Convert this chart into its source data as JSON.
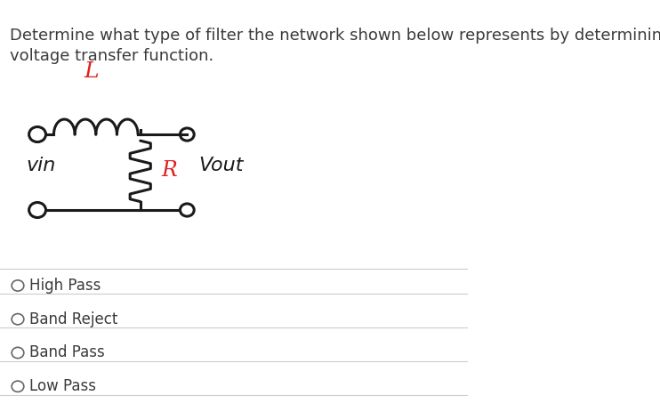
{
  "title_line1": "Determine what type of filter the network shown below represents by determining the",
  "title_line2": "voltage transfer function.",
  "title_fontsize": 13,
  "title_color": "#3a3a3a",
  "bg_color": "#ffffff",
  "circuit_color": "#1a1a1a",
  "red_color": "#e02020",
  "options": [
    "High Pass",
    "Band Reject",
    "Band Pass",
    "Low Pass"
  ],
  "option_fontsize": 12,
  "option_color": "#3a3a3a",
  "fig_width": 7.42,
  "fig_height": 4.72
}
